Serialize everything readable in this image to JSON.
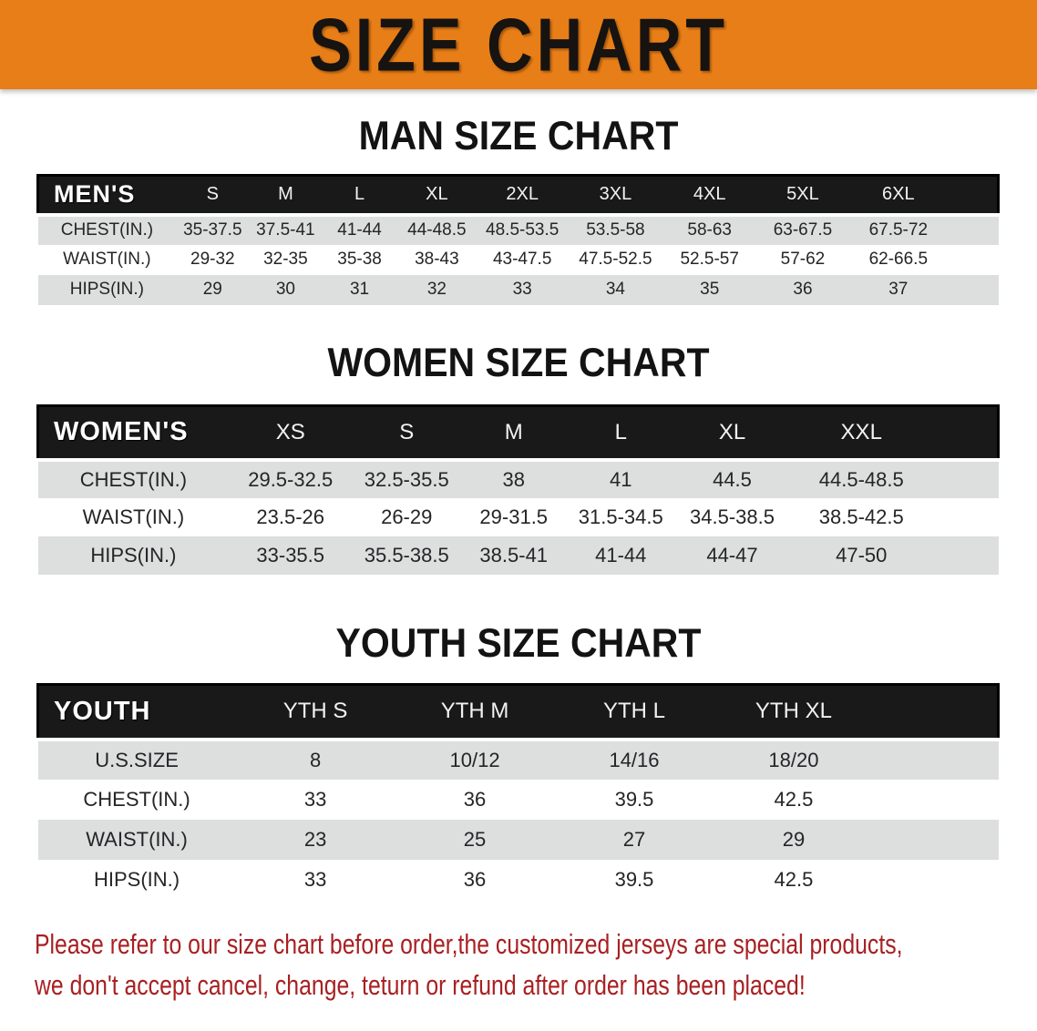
{
  "banner": {
    "title": "SIZE CHART",
    "bg_color": "#E87E17"
  },
  "sections": [
    {
      "heading": "MAN SIZE CHART",
      "header_label": "MEN'S",
      "columns": [
        "S",
        "M",
        "L",
        "XL",
        "2XL",
        "3XL",
        "4XL",
        "5XL",
        "6XL"
      ],
      "rows": [
        {
          "label": "CHEST(IN.)",
          "values": [
            "35-37.5",
            "37.5-41",
            "41-44",
            "44-48.5",
            "48.5-53.5",
            "53.5-58",
            "58-63",
            "63-67.5",
            "67.5-72"
          ]
        },
        {
          "label": "WAIST(IN.)",
          "values": [
            "29-32",
            "32-35",
            "35-38",
            "38-43",
            "43-47.5",
            "47.5-52.5",
            "52.5-57",
            "57-62",
            "62-66.5"
          ]
        },
        {
          "label": "HIPS(IN.)",
          "values": [
            "29",
            "30",
            "31",
            "32",
            "33",
            "34",
            "35",
            "36",
            "37"
          ]
        }
      ]
    },
    {
      "heading": "WOMEN SIZE CHART",
      "header_label": "WOMEN'S",
      "columns": [
        "XS",
        "S",
        "M",
        "L",
        "XL",
        "XXL"
      ],
      "rows": [
        {
          "label": "CHEST(IN.)",
          "values": [
            "29.5-32.5",
            "32.5-35.5",
            "38",
            "41",
            "44.5",
            "44.5-48.5"
          ]
        },
        {
          "label": "WAIST(IN.)",
          "values": [
            "23.5-26",
            "26-29",
            "29-31.5",
            "31.5-34.5",
            "34.5-38.5",
            "38.5-42.5"
          ]
        },
        {
          "label": "HIPS(IN.)",
          "values": [
            "33-35.5",
            "35.5-38.5",
            "38.5-41",
            "41-44",
            "44-47",
            "47-50"
          ]
        }
      ]
    },
    {
      "heading": "YOUTH SIZE CHART",
      "header_label": "YOUTH",
      "columns": [
        "YTH S",
        "YTH M",
        "YTH L",
        "YTH XL"
      ],
      "rows": [
        {
          "label": "U.S.SIZE",
          "values": [
            "8",
            "10/12",
            "14/16",
            "18/20"
          ]
        },
        {
          "label": "CHEST(IN.)",
          "values": [
            "33",
            "36",
            "39.5",
            "42.5"
          ]
        },
        {
          "label": "WAIST(IN.)",
          "values": [
            "23",
            "25",
            "27",
            "29"
          ]
        },
        {
          "label": "HIPS(IN.)",
          "values": [
            "33",
            "36",
            "39.5",
            "42.5"
          ]
        }
      ]
    }
  ],
  "disclaimer": {
    "line1": "Please refer to our size chart before order,the customized jerseys are special products,",
    "line2": "we don't accept cancel, change, teturn or refund after order has been placed!",
    "color": "#A82022"
  }
}
